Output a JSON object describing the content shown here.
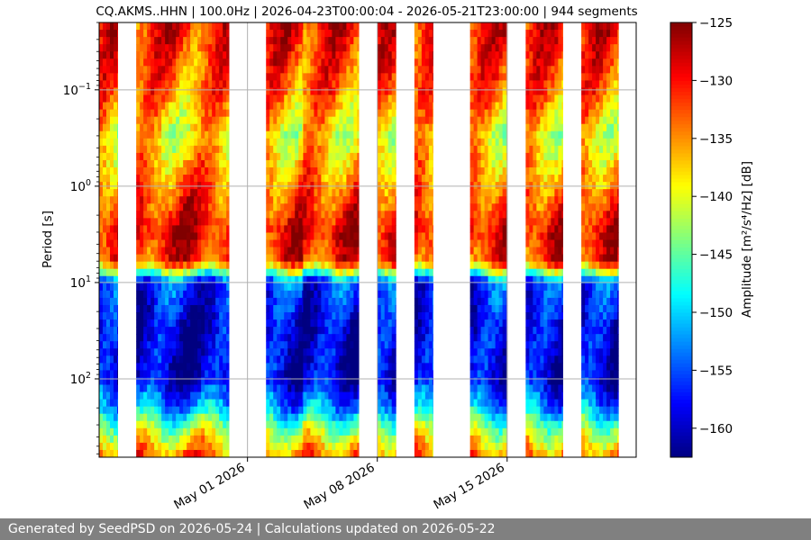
{
  "chart_data": {
    "type": "heatmap",
    "title": "CQ.AKMS..HHN | 100.0Hz | 2026-04-23T00:00:04 - 2026-05-21T23:00:00 | 944 segments",
    "ylabel": "Period [s]",
    "yscale": "log",
    "y_inverted": true,
    "y_tick_labels": [
      "10^-1",
      "10^0",
      "10^1",
      "10^2"
    ],
    "ylim": [
      0.02,
      650
    ],
    "xlim": [
      "2026-04-23T00:00:04",
      "2026-05-21T23:00:00"
    ],
    "x_tick_labels": [
      "May 01 2026",
      "May 08 2026",
      "May 15 2026"
    ],
    "x_tick_values": [
      "2026-05-01",
      "2026-05-08",
      "2026-05-15"
    ],
    "grid": true,
    "colorbar": {
      "label": "Amplitude [m²/s⁴/Hz] [dB]",
      "range": [
        -162.5,
        -125
      ],
      "ticks": [
        -125,
        -130,
        -135,
        -140,
        -145,
        -150,
        -155,
        -160
      ],
      "tick_labels": [
        "−125",
        "−130",
        "−135",
        "−140",
        "−145",
        "−150",
        "−155",
        "−160"
      ],
      "colormap": "jet"
    },
    "data_segments": [
      [
        "2026-04-23",
        "2026-04-24"
      ],
      [
        "2026-04-25",
        "2026-04-30"
      ],
      [
        "2026-05-02",
        "2026-05-04"
      ],
      [
        "2026-05-04",
        "2026-05-07"
      ],
      [
        "2026-05-08",
        "2026-05-09"
      ],
      [
        "2026-05-10",
        "2026-05-11"
      ],
      [
        "2026-05-13",
        "2026-05-15"
      ],
      [
        "2026-05-16",
        "2026-05-18"
      ],
      [
        "2026-05-19",
        "2026-05-21"
      ]
    ],
    "typical_amplitude_profile": {
      "period_s": [
        0.02,
        0.03,
        0.1,
        0.3,
        1,
        3,
        6,
        10,
        30,
        100,
        200,
        300,
        600
      ],
      "amplitude_db": [
        -130,
        -131,
        -134,
        -139,
        -133,
        -128,
        -131,
        -156,
        -160,
        -160,
        -152,
        -144,
        -134
      ]
    }
  },
  "footer": {
    "text": "Generated by SeedPSD on 2026-05-24 | Calculations updated on 2026-05-22"
  },
  "colors": {
    "footer_bg": "#808080",
    "footer_text": "#ffffff",
    "grid": "#b0b0b0"
  }
}
